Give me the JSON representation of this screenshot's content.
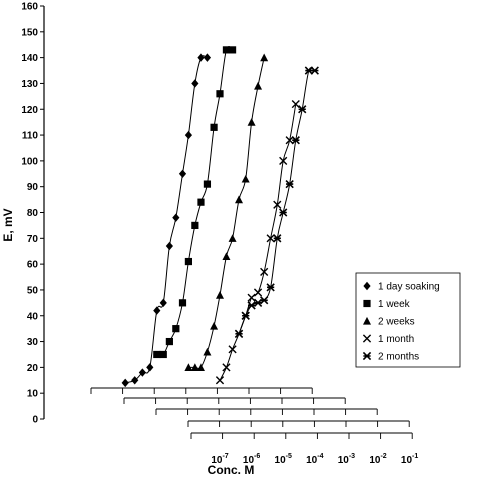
{
  "chart_data": {
    "type": "line",
    "title": "",
    "xlabel": "Conc. M",
    "ylabel": "E, mV",
    "ylim": [
      0,
      160
    ],
    "yticks": [
      0,
      10,
      20,
      30,
      40,
      50,
      60,
      70,
      80,
      90,
      100,
      110,
      120,
      130,
      140,
      150,
      160
    ],
    "x_scale": "log",
    "x_tick_labels": [
      {
        "base": "10",
        "exp": "-7"
      },
      {
        "base": "10",
        "exp": "-6"
      },
      {
        "base": "10",
        "exp": "-5"
      },
      {
        "base": "10",
        "exp": "-4"
      },
      {
        "base": "10",
        "exp": "-3"
      },
      {
        "base": "10",
        "exp": "-2"
      },
      {
        "base": "10",
        "exp": "-1"
      }
    ],
    "grid": false,
    "legend_position": "right",
    "series": [
      {
        "name": "1 day soaking",
        "marker": "diamond",
        "x": [
          1e-10,
          2e-10,
          3.5e-10,
          6e-10,
          1e-09,
          1.6e-09,
          2.5e-09,
          4e-09,
          6.5e-09,
          1e-08,
          1.6e-08,
          2.5e-08,
          4e-08
        ],
        "y": [
          14,
          15,
          18,
          20,
          42,
          45,
          67,
          78,
          95,
          110,
          130,
          140,
          140
        ]
      },
      {
        "name": "1 week",
        "marker": "square",
        "x": [
          1e-09,
          1.6e-09,
          2.5e-09,
          4e-09,
          6.5e-09,
          1e-08,
          1.6e-08,
          2.5e-08,
          4e-08,
          6.5e-08,
          1e-07,
          1.6e-07,
          2.5e-07
        ],
        "y": [
          25,
          25,
          30,
          35,
          45,
          61,
          75,
          84,
          91,
          113,
          126,
          143,
          143
        ]
      },
      {
        "name": "2 weeks",
        "marker": "triangle",
        "x": [
          1e-08,
          1.6e-08,
          2.5e-08,
          4e-08,
          6.5e-08,
          1e-07,
          1.6e-07,
          2.5e-07,
          4e-07,
          6.5e-07,
          1e-06,
          1.6e-06,
          2.5e-06
        ],
        "y": [
          20,
          20,
          20,
          26,
          36,
          48,
          63,
          70,
          85,
          93,
          115,
          129,
          140
        ]
      },
      {
        "name": "1 month",
        "marker": "x",
        "x": [
          1e-07,
          1.6e-07,
          2.5e-07,
          4e-07,
          6.5e-07,
          1e-06,
          1.6e-06,
          2.5e-06,
          4e-06,
          6.5e-06,
          1e-05,
          1.6e-05,
          2.5e-05
        ],
        "y": [
          15,
          20,
          27,
          33,
          40,
          47,
          49,
          57,
          70,
          83,
          100,
          108,
          122
        ]
      },
      {
        "name": "2 months",
        "marker": "star",
        "x": [
          4e-07,
          6.5e-07,
          1e-06,
          1.6e-06,
          2.5e-06,
          4e-06,
          6.5e-06,
          1e-05,
          1.6e-05,
          2.5e-05,
          4e-05,
          6.5e-05,
          0.0001
        ],
        "y": [
          33,
          40,
          44,
          45,
          46,
          51,
          70,
          80,
          91,
          108,
          120,
          135,
          135
        ]
      }
    ]
  }
}
